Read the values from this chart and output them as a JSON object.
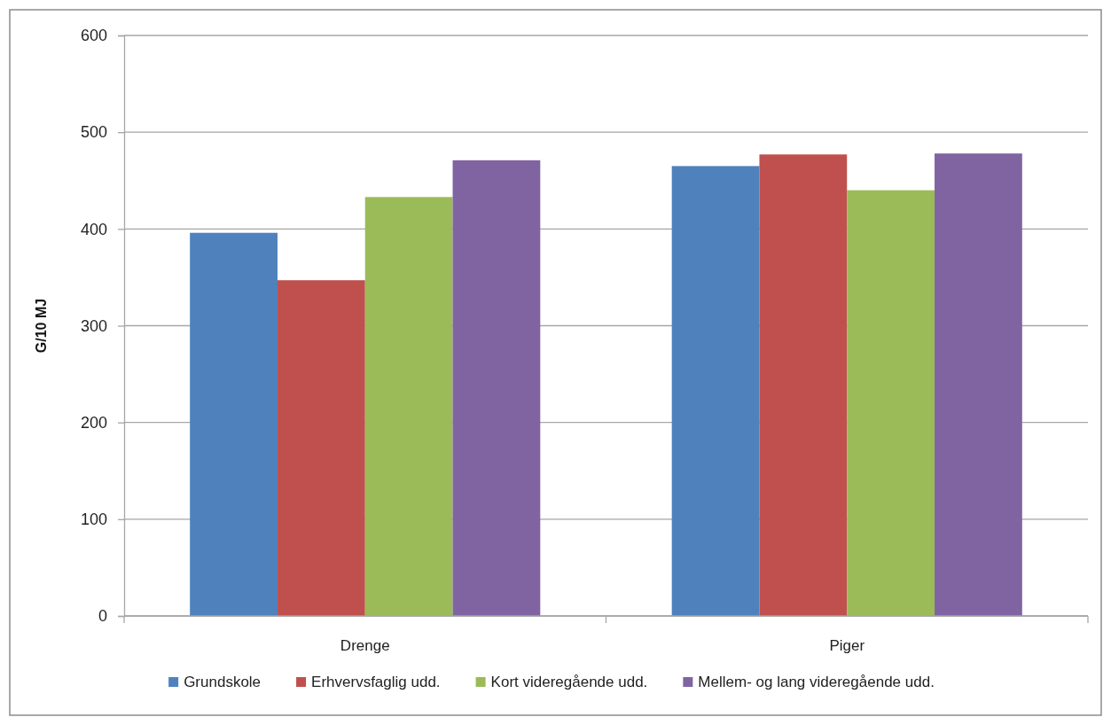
{
  "chart_data": {
    "type": "bar",
    "ylabel": "G/10 MJ",
    "categories": [
      "Drenge",
      "Piger"
    ],
    "series": [
      {
        "name": "Grundskole",
        "color": "#4f81bd",
        "values": [
          396,
          465
        ]
      },
      {
        "name": "Erhvervsfaglig udd.",
        "color": "#c0504d",
        "values": [
          347,
          477
        ]
      },
      {
        "name": "Kort videregående udd.",
        "color": "#9bbb59",
        "values": [
          433,
          440
        ]
      },
      {
        "name": "Mellem- og lang videregående udd.",
        "color": "#8064a2",
        "values": [
          471,
          478
        ]
      }
    ],
    "ylim": [
      0,
      600
    ],
    "yticks": [
      0,
      100,
      200,
      300,
      400,
      500,
      600
    ],
    "grid": "y",
    "legend": "bottom"
  }
}
